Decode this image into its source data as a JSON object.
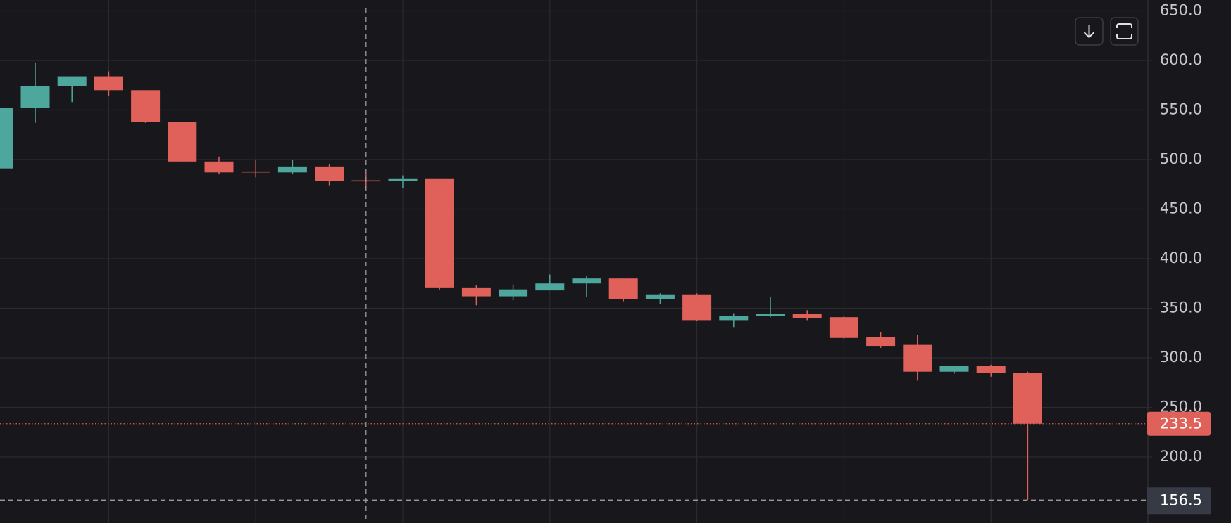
{
  "chart_data": {
    "type": "candlestick",
    "series": [
      {
        "name": null,
        "up_color": "#4ea79c",
        "down_color": "#e0605a",
        "open": [
          491,
          552,
          574,
          584,
          570,
          538,
          498,
          488,
          487,
          493,
          479,
          478,
          481,
          371,
          362,
          368,
          375,
          380,
          359,
          364,
          338,
          342,
          344,
          341,
          321,
          313,
          286,
          292,
          285
        ],
        "high": [
          553,
          598,
          584,
          589,
          570,
          538,
          503,
          500,
          500,
          495,
          485,
          484,
          481,
          373,
          374,
          384,
          383,
          380,
          365,
          365,
          345,
          361,
          348,
          342,
          326,
          323,
          292,
          293,
          286
        ],
        "low": [
          491,
          537,
          558,
          564,
          537,
          498,
          485,
          482,
          485,
          474,
          470,
          471,
          369,
          353,
          358,
          368,
          361,
          357,
          354,
          337,
          331,
          341,
          338,
          319,
          310,
          277,
          284,
          281,
          156.5
        ],
        "close": [
          552,
          574,
          584,
          570,
          538,
          498,
          487,
          487,
          493,
          478,
          478,
          481,
          371,
          362,
          369,
          375,
          380,
          359,
          364,
          338,
          342,
          344,
          340,
          320,
          312,
          286,
          292,
          285,
          233.5
        ]
      }
    ],
    "ylim": [
      133.3,
      661
    ],
    "yticks": [
      {
        "value": 200,
        "label": "200.0"
      },
      {
        "value": 250,
        "label": "250.0"
      },
      {
        "value": 300,
        "label": "300.0"
      },
      {
        "value": 350,
        "label": "350.0"
      },
      {
        "value": 400,
        "label": "400.0"
      },
      {
        "value": 450,
        "label": "450.0"
      },
      {
        "value": 500,
        "label": "500.0"
      },
      {
        "value": 550,
        "label": "550.0"
      },
      {
        "value": 600,
        "label": "600.0"
      },
      {
        "value": 650,
        "label": "650.0"
      }
    ],
    "grid": true,
    "last_price": 233.5,
    "crosshair_price": 156.5
  }
}
